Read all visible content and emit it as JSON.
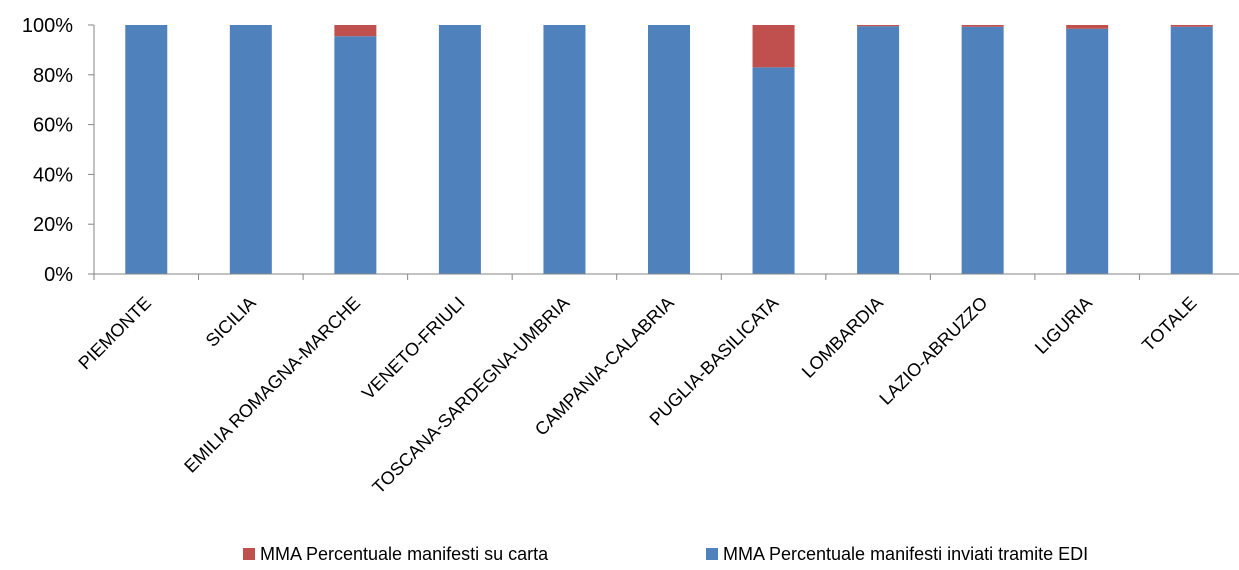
{
  "chart_data": {
    "type": "bar",
    "stacked": "percent",
    "categories": [
      "PIEMONTE",
      "SICILIA",
      "EMILIA ROMAGNA-MARCHE",
      "VENETO-FRIULI",
      "TOSCANA-SARDEGNA-UMBRIA",
      "CAMPANIA-CALABRIA",
      "PUGLIA-BASILICATA",
      "LOMBARDIA",
      "LAZIO-ABRUZZO",
      "LIGURIA",
      "TOTALE"
    ],
    "series": [
      {
        "name": "MMA Percentuale manifesti inviati  tramite EDI",
        "color": "#4F81BD",
        "values": [
          100,
          100,
          95.5,
          100,
          100,
          100,
          83,
          99.5,
          99.3,
          98.5,
          99.3
        ]
      },
      {
        "name": "MMA Percentuale manifesti su carta",
        "color": "#C0504D",
        "values": [
          0,
          0,
          4.5,
          0,
          0,
          0,
          17,
          0.5,
          0.7,
          1.5,
          0.7
        ]
      }
    ],
    "y_ticks": [
      "0%",
      "20%",
      "40%",
      "60%",
      "80%",
      "100%"
    ],
    "ylim": [
      0,
      100
    ],
    "grid": false,
    "legend_position": "bottom",
    "legend_order": [
      1,
      0
    ]
  }
}
